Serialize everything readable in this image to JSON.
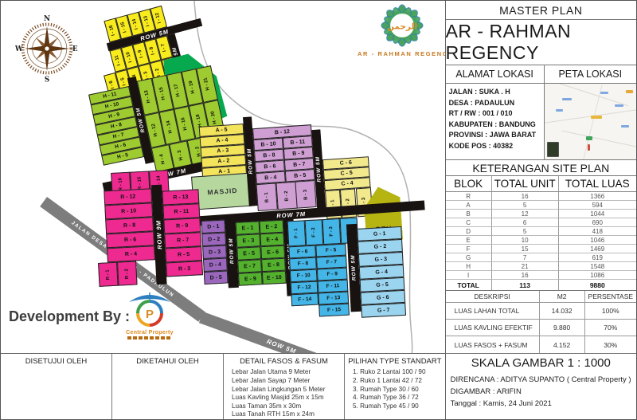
{
  "header": {
    "master_plan": "MASTER PLAN",
    "project_name": "AR - RAHMAN REGENCY"
  },
  "location": {
    "alamat_header": "ALAMAT LOKASI",
    "peta_header": "PETA LOKASI",
    "address_lines": [
      "JALAN : SUKA . H",
      "DESA : PADAULUN",
      "RT / RW : 001 / 010",
      "KABUPATEN : BANDUNG",
      "PROVINSI : JAWA BARAT",
      "KODE POS : 40382"
    ]
  },
  "site_plan_table": {
    "title": "KETERANGAN SITE PLAN",
    "headers": [
      "BLOK",
      "TOTAL UNIT",
      "TOTAL LUAS"
    ],
    "rows": [
      [
        "R",
        "16",
        "1366"
      ],
      [
        "A",
        "5",
        "594"
      ],
      [
        "B",
        "12",
        "1044"
      ],
      [
        "C",
        "6",
        "690"
      ],
      [
        "D",
        "5",
        "418"
      ],
      [
        "E",
        "10",
        "1046"
      ],
      [
        "F",
        "15",
        "1469"
      ],
      [
        "G",
        "7",
        "619"
      ],
      [
        "H",
        "21",
        "1548"
      ],
      [
        "I",
        "16",
        "1086"
      ]
    ],
    "total_row": [
      "TOTAL",
      "113",
      "9880"
    ]
  },
  "deskripsi_table": {
    "headers": [
      "DESKRIPSI",
      "M2",
      "PERSENTASE"
    ],
    "rows": [
      [
        "LUAS LAHAN TOTAL",
        "14.032",
        "100%"
      ],
      [
        "LUAS KAVLING EFEKTIF",
        "9.880",
        "70%"
      ],
      [
        "LUAS FASOS + FASUM",
        "4.152",
        "30%"
      ]
    ]
  },
  "footer": {
    "skala": "SKALA GAMBAR 1 : 1000",
    "direncana": "DIRENCANA : ADITYA SUPANTO ( Central Property )",
    "digambar": "DIGAMBAR : ARIFIN",
    "tanggal": "Tanggal : Kamis, 24 Juni 2021"
  },
  "bottom_bar": {
    "col1_header": "DISETUJUI OLEH",
    "col2_header": "DIKETAHUI OLEH",
    "col3_header": "DETAIL FASOS & FASUM",
    "col3_items": [
      "Lebar Jalan Utama 9 Meter",
      "Lebar Jalan Sayap 7 Meter",
      "Lebar Jalan Lingkungan 5 Meter",
      "Luas Kavling Masjid 25m x 15m",
      "Luas Taman 35m x 30m",
      "Luas Tanah RTH 15m x 24m"
    ],
    "col4_header": "PILIHAN TYPE STANDART",
    "col4_items": [
      "1. Ruko 2 Lantai  100 / 90",
      "2. Ruko 1 Lantai 42 / 72",
      "3. Rumah Type 30 / 60",
      "4. Rumah Type 36 / 72",
      "5. Rumah Type 45 / 90"
    ]
  },
  "map": {
    "development_by": "Development By :",
    "brand": {
      "arabic": "الرحمن",
      "name": "AR - RAHMAN REGENCY",
      "developer": "Central Property"
    },
    "compass": {
      "n": "N",
      "e": "E",
      "s": "S",
      "w": "W"
    },
    "road_labels": {
      "r5": "ROW 5M",
      "r7": "ROW 7M",
      "r9": "ROW 9M",
      "jalan": "JALAN DESA MAJALAYA - PADAULUN"
    },
    "areas": {
      "taman": "TAMAN",
      "masjid": "MASJID",
      "rth": "RTH"
    },
    "blocks": {
      "I": {
        "row1": [
          "I - 16",
          "I - 15",
          "I - 14",
          "I - 13",
          "I - 12"
        ],
        "row2": [
          "I - 11",
          "I - 10",
          "I - 9",
          "I - 8",
          "I - 7"
        ],
        "row3": [
          "I - 6",
          "I - 5",
          "I - 4",
          "I - 3",
          "I - 2",
          "I - 1"
        ]
      },
      "H": {
        "left": [
          "H - 11",
          "H - 10",
          "H - 9",
          "H - 8",
          "H - 7",
          "H - 6",
          "H - 5"
        ],
        "row1": [
          "H - 13",
          "H - 15",
          "H - 17",
          "H - 19",
          "H - 21"
        ],
        "row2": [
          "H - 12",
          "H - 14",
          "H - 16",
          "H - 18",
          "H - 20"
        ],
        "row3": [
          "H - 4",
          "H - 3",
          "H - 2",
          "H - 1"
        ]
      },
      "A": {
        "col": [
          "A - 5",
          "A - 4",
          "A - 3",
          "A - 2",
          "A - 1"
        ]
      },
      "B": {
        "top": [
          "B - 12"
        ],
        "left": [
          "B - 10",
          "B - 8",
          "B - 6",
          "B - 4"
        ],
        "right": [
          "B - 11",
          "B - 9",
          "B - 7",
          "B - 5"
        ],
        "bottom": [
          "B - 1",
          "B - 2",
          "B - 3"
        ]
      },
      "C": {
        "col": [
          "C - 6",
          "C - 5",
          "C - 4"
        ],
        "bottom": [
          "C - 1",
          "C - 2",
          "C - 3"
        ]
      },
      "R": {
        "top": [
          "R - 16",
          "R - 15",
          "R - 14"
        ],
        "left": [
          "R - 12",
          "R - 10",
          "R - 8",
          "R - 6",
          "R - 4"
        ],
        "bottom_left": [
          "R - 1",
          "R - 2"
        ],
        "right": [
          "R - 13",
          "R - 11",
          "R - 9",
          "R - 7",
          "R - 5",
          "R - 3"
        ]
      },
      "D": {
        "col": [
          "D - 1",
          "D - 2",
          "D - 3",
          "D - 4",
          "D - 5"
        ]
      },
      "E": {
        "left": [
          "E - 1",
          "E - 3",
          "E - 5",
          "E - 7",
          "E - 9"
        ],
        "right": [
          "E - 2",
          "E - 4",
          "E - 6",
          "E - 8",
          "E - 10"
        ]
      },
      "F": {
        "top": [
          "F - 1",
          "F - 2",
          "F - 3",
          "F - 4"
        ],
        "left": [
          "F - 6",
          "F - 8",
          "F - 10",
          "F - 12",
          "F - 14"
        ],
        "right": [
          "F - 5",
          "F - 7",
          "F - 9",
          "F - 11",
          "F - 13",
          "F - 15"
        ]
      },
      "G": {
        "col": [
          "G - 1",
          "G - 2",
          "G - 3",
          "G - 4",
          "G - 5",
          "G - 6",
          "G - 7"
        ]
      }
    }
  },
  "colors": {
    "block_i": "#f9ec1c",
    "taman": "#07a94f",
    "block_h": "#9ecb2f",
    "block_a": "#f4e45c",
    "masjid": "#b6d89f",
    "block_b": "#cf9fd3",
    "block_c": "#f2e98d",
    "rth": "#b5b411",
    "block_r": "#ee2a90",
    "block_d": "#9a67bc",
    "block_e": "#53b12e",
    "block_f": "#43b5e7",
    "block_g": "#9bd4ef",
    "road": "#181210",
    "gray_road": "#7d7d7d",
    "brand_orange": "#c8781e"
  }
}
